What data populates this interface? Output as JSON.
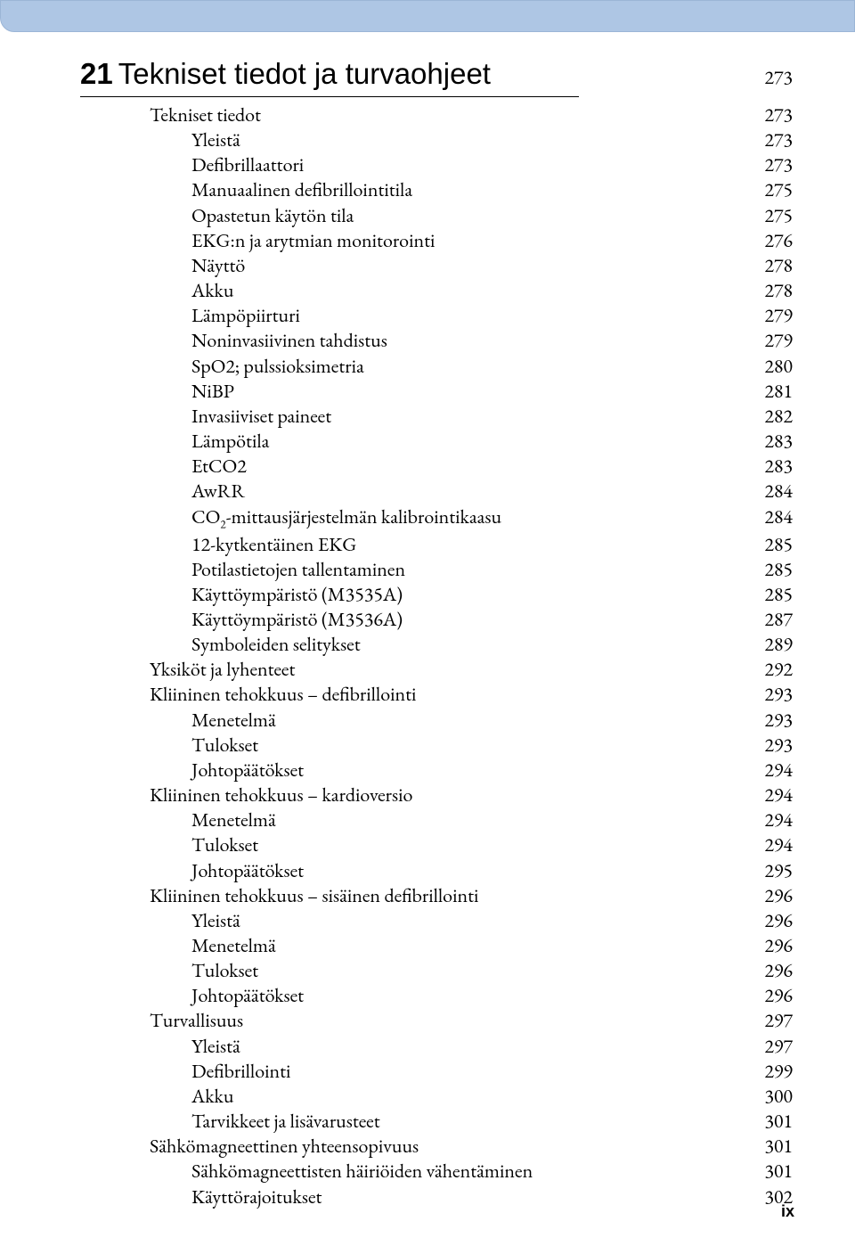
{
  "chapter": {
    "number": "21",
    "title": "Tekniset tiedot ja turvaohjeet",
    "page": "273"
  },
  "entries": [
    {
      "label": "Tekniset tiedot",
      "page": "273",
      "indent": 1
    },
    {
      "label": "Yleistä",
      "page": "273",
      "indent": 2
    },
    {
      "label": "Defibrillaattori",
      "page": "273",
      "indent": 2
    },
    {
      "label": "Manuaalinen defibrillointitila",
      "page": "275",
      "indent": 2
    },
    {
      "label": "Opastetun käytön tila",
      "page": "275",
      "indent": 2
    },
    {
      "label": "EKG:n ja arytmian monitorointi",
      "page": "276",
      "indent": 2
    },
    {
      "label": "Näyttö",
      "page": "278",
      "indent": 2
    },
    {
      "label": "Akku",
      "page": "278",
      "indent": 2
    },
    {
      "label": "Lämpöpiirturi",
      "page": "279",
      "indent": 2
    },
    {
      "label": "Noninvasiivinen tahdistus",
      "page": "279",
      "indent": 2
    },
    {
      "label": "SpO2; pulssioksimetria",
      "page": "280",
      "indent": 2
    },
    {
      "label": "NiBP",
      "page": "281",
      "indent": 2
    },
    {
      "label": "Invasiiviset paineet",
      "page": "282",
      "indent": 2
    },
    {
      "label": "Lämpötila",
      "page": "283",
      "indent": 2
    },
    {
      "label": "EtCO2",
      "page": "283",
      "indent": 2
    },
    {
      "label": "AwRR",
      "page": "284",
      "indent": 2
    },
    {
      "label": "CO<span class=\"sub\">2</span>-mittausjärjestelmän kalibrointikaasu",
      "page": "284",
      "indent": 2,
      "html": true
    },
    {
      "label": "12-kytkentäinen EKG",
      "page": "285",
      "indent": 2
    },
    {
      "label": "Potilastietojen tallentaminen",
      "page": "285",
      "indent": 2
    },
    {
      "label": "Käyttöympäristö (M3535A)",
      "page": "285",
      "indent": 2
    },
    {
      "label": "Käyttöympäristö (M3536A)",
      "page": "287",
      "indent": 2
    },
    {
      "label": "Symboleiden selitykset",
      "page": "289",
      "indent": 2
    },
    {
      "label": "Yksiköt ja lyhenteet",
      "page": "292",
      "indent": 1
    },
    {
      "label": "Kliininen tehokkuus – defibrillointi",
      "page": "293",
      "indent": 1
    },
    {
      "label": "Menetelmä",
      "page": "293",
      "indent": 2
    },
    {
      "label": "Tulokset",
      "page": "293",
      "indent": 2
    },
    {
      "label": "Johtopäätökset",
      "page": "294",
      "indent": 2
    },
    {
      "label": "Kliininen tehokkuus – kardioversio",
      "page": "294",
      "indent": 1
    },
    {
      "label": "Menetelmä",
      "page": "294",
      "indent": 2
    },
    {
      "label": "Tulokset",
      "page": "294",
      "indent": 2
    },
    {
      "label": "Johtopäätökset",
      "page": "295",
      "indent": 2
    },
    {
      "label": "Kliininen tehokkuus – sisäinen defibrillointi",
      "page": "296",
      "indent": 1
    },
    {
      "label": "Yleistä",
      "page": "296",
      "indent": 2
    },
    {
      "label": "Menetelmä",
      "page": "296",
      "indent": 2
    },
    {
      "label": "Tulokset",
      "page": "296",
      "indent": 2
    },
    {
      "label": "Johtopäätökset",
      "page": "296",
      "indent": 2
    },
    {
      "label": "Turvallisuus",
      "page": "297",
      "indent": 1
    },
    {
      "label": "Yleistä",
      "page": "297",
      "indent": 2
    },
    {
      "label": "Defibrillointi",
      "page": "299",
      "indent": 2
    },
    {
      "label": "Akku",
      "page": "300",
      "indent": 2
    },
    {
      "label": "Tarvikkeet ja lisävarusteet",
      "page": "301",
      "indent": 2
    },
    {
      "label": "Sähkömagneettinen yhteensopivuus",
      "page": "301",
      "indent": 1
    },
    {
      "label": "Sähkömagneettisten häiriöiden vähentäminen",
      "page": "301",
      "indent": 2
    },
    {
      "label": "Käyttörajoitukset",
      "page": "302",
      "indent": 2
    }
  ],
  "page_number": "ix"
}
